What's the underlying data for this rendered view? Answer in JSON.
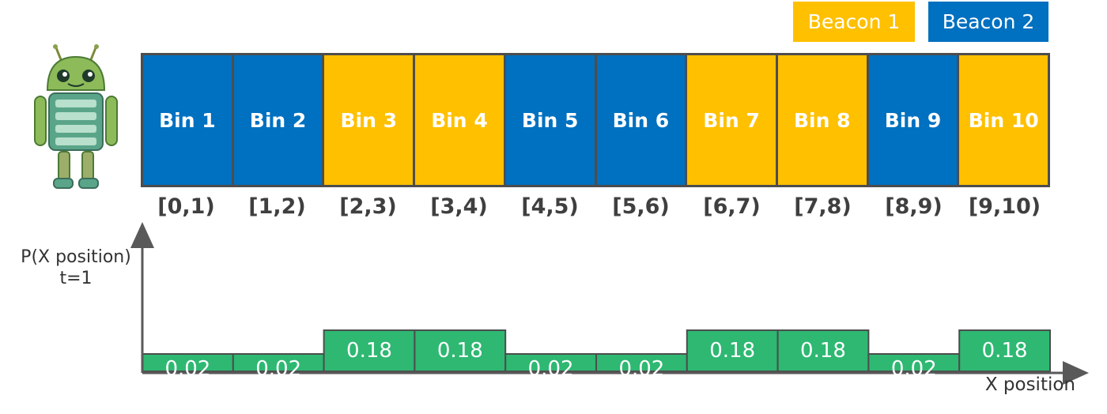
{
  "legend": [
    {
      "label": "Beacon 1",
      "color": "#FFC000"
    },
    {
      "label": "Beacon 2",
      "color": "#0070C0"
    }
  ],
  "bins": [
    {
      "label": "Bin 1",
      "range": "[0,1)",
      "beacon": 2
    },
    {
      "label": "Bin 2",
      "range": "[1,2)",
      "beacon": 2
    },
    {
      "label": "Bin 3",
      "range": "[2,3)",
      "beacon": 1
    },
    {
      "label": "Bin 4",
      "range": "[3,4)",
      "beacon": 1
    },
    {
      "label": "Bin 5",
      "range": "[4,5)",
      "beacon": 2
    },
    {
      "label": "Bin 6",
      "range": "[5,6)",
      "beacon": 2
    },
    {
      "label": "Bin 7",
      "range": "[6,7)",
      "beacon": 1
    },
    {
      "label": "Bin 8",
      "range": "[7,8)",
      "beacon": 1
    },
    {
      "label": "Bin 9",
      "range": "[8,9)",
      "beacon": 2
    },
    {
      "label": "Bin 10",
      "range": "[9,10)",
      "beacon": 1
    }
  ],
  "chart_data": {
    "type": "bar",
    "ylabel_line1": "P(X position)",
    "ylabel_line2": "t=1",
    "xlabel": "X position",
    "bar_color": "#2EB872",
    "values": [
      0.02,
      0.02,
      0.18,
      0.18,
      0.02,
      0.02,
      0.18,
      0.18,
      0.02,
      0.18
    ]
  },
  "colors": {
    "beacon1": "#FFC000",
    "beacon2": "#0070C0",
    "border": "#4d4d4d",
    "axis": "#595959"
  },
  "robot_icon": "android-robot-icon"
}
